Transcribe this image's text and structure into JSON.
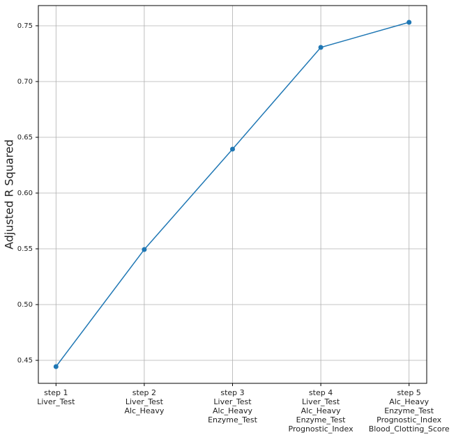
{
  "chart_data": {
    "type": "line",
    "ylabel": "Adjusted R Squared",
    "categories": [
      "step 1\nLiver_Test",
      "step 2\nLiver_Test\nAlc_Heavy",
      "step 3\nLiver_Test\nAlc_Heavy\nEnzyme_Test",
      "step 4\nLiver_Test\nAlc_Heavy\nEnzyme_Test\nPrognostic_Index",
      "step 5\nAlc_Heavy\nEnzyme_Test\nPrognostic_Index\nBlood_Clotting_Score"
    ],
    "values": [
      0.4444,
      0.5494,
      0.6394,
      0.7306,
      0.7531
    ],
    "color": "#1f77b4",
    "ylim": [
      0.4294,
      0.7681
    ],
    "yticks": [
      {
        "value": 0.45,
        "label": "0.45"
      },
      {
        "value": 0.5,
        "label": "0.50"
      },
      {
        "value": 0.55,
        "label": "0.55"
      },
      {
        "value": 0.6,
        "label": "0.60"
      },
      {
        "value": 0.65,
        "label": "0.65"
      },
      {
        "value": 0.7,
        "label": "0.70"
      },
      {
        "value": 0.75,
        "label": "0.75"
      }
    ],
    "grid": true
  }
}
